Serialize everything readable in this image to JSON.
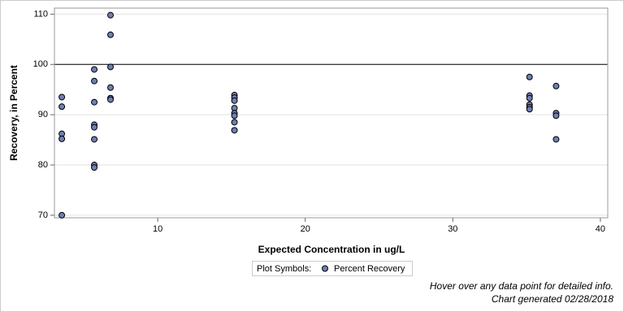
{
  "chart_data": {
    "type": "scatter",
    "x_label": "Expected Concentration in ug/L",
    "y_label": "Recovery, in Percent",
    "x": [
      3.5,
      3.5,
      3.5,
      3.5,
      3.5,
      5.7,
      5.7,
      5.7,
      5.7,
      5.7,
      5.7,
      5.7,
      5.7,
      6.8,
      6.8,
      6.8,
      6.8,
      6.8,
      6.8,
      15.2,
      15.2,
      15.2,
      15.2,
      15.2,
      15.2,
      15.2,
      15.2,
      35.2,
      35.2,
      35.2,
      35.2,
      35.2,
      35.2,
      37,
      37,
      37,
      37
    ],
    "series": [
      {
        "name": "Percent Recovery",
        "color": "#6f7fb3",
        "values": [
          93.5,
          91.6,
          86.2,
          85.2,
          70,
          99.0,
          96.7,
          92.5,
          88.0,
          87.5,
          85.1,
          80.0,
          79.5,
          109.8,
          105.9,
          99.5,
          95.4,
          93.3,
          93.0,
          93.9,
          93.4,
          92.8,
          91.3,
          90.3,
          89.8,
          88.5,
          86.9,
          97.5,
          93.8,
          93.3,
          92.0,
          91.5,
          91.1,
          95.7,
          90.3,
          89.8,
          85.1
        ]
      }
    ],
    "xlim": [
      3,
      40.5
    ],
    "xticks": [
      10,
      20,
      30,
      40
    ],
    "ylim": [
      69.5,
      111.2
    ],
    "yticks": [
      70,
      80,
      90,
      100,
      110
    ],
    "grid": true,
    "reference_lines": [
      100
    ],
    "legend_title": "Plot Symbols:",
    "legend_position": "bottom",
    "footnotes": [
      "Hover over any data point for detailed info.",
      "Chart generated 02/28/2018"
    ]
  }
}
